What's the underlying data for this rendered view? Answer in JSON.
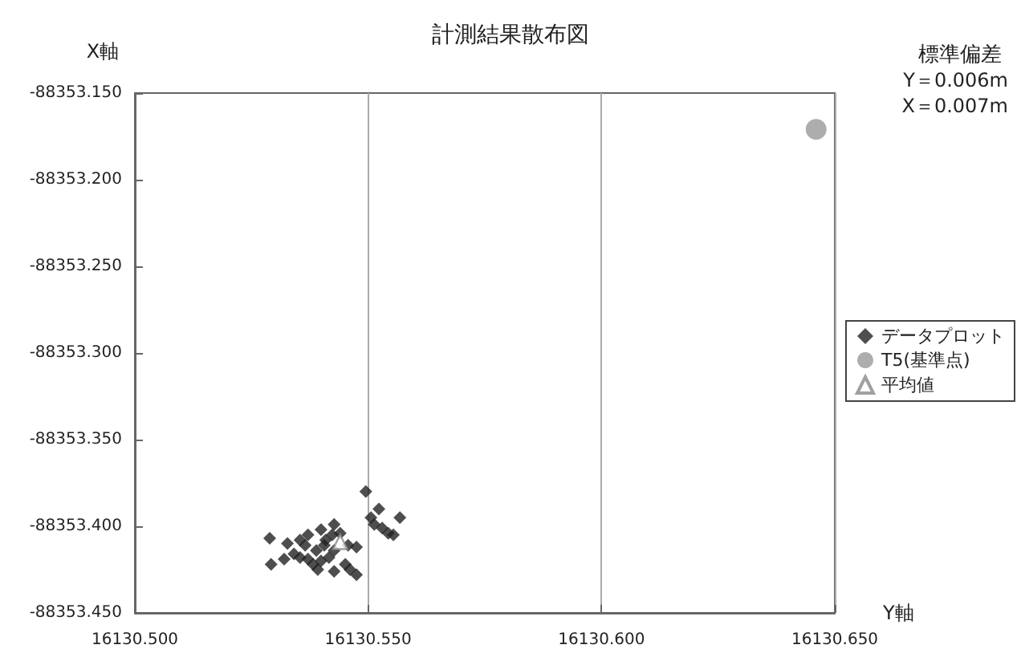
{
  "chart_data": {
    "type": "scatter",
    "title": "計測結果散布図",
    "xlabel": "Y軸",
    "ylabel": "X軸",
    "annotations": [
      "標準偏差",
      "Y＝0.006m",
      "X＝0.007m"
    ],
    "xlim": [
      16130.5,
      16130.65
    ],
    "xticks": [
      {
        "value": 16130.5,
        "label": "16130.500"
      },
      {
        "value": 16130.55,
        "label": "16130.550"
      },
      {
        "value": 16130.6,
        "label": "16130.600"
      },
      {
        "value": 16130.65,
        "label": "16130.650"
      }
    ],
    "ylim": [
      -88353.45,
      -88353.15
    ],
    "yticks": [
      {
        "value": -88353.45,
        "label": "-88353.450"
      },
      {
        "value": -88353.4,
        "label": "-88353.400"
      },
      {
        "value": -88353.35,
        "label": "-88353.350"
      },
      {
        "value": -88353.3,
        "label": "-88353.300"
      },
      {
        "value": -88353.25,
        "label": "-88353.250"
      },
      {
        "value": -88353.2,
        "label": "-88353.200"
      },
      {
        "value": -88353.15,
        "label": "-88353.150"
      }
    ],
    "grid": "x",
    "legend": "right",
    "series": [
      {
        "name": "データプロット",
        "color": "#222222",
        "marker": "diamond",
        "x": [
          16130.5495,
          16130.5523,
          16130.5568,
          16130.5506,
          16130.5513,
          16130.553,
          16130.5554,
          16130.5543,
          16130.5289,
          16130.5327,
          16130.5292,
          16130.532,
          16130.5354,
          16130.5399,
          16130.5427,
          16130.544,
          16130.5409,
          16130.5389,
          16130.5365,
          16130.5416,
          16130.5392,
          16130.5382,
          16130.5451,
          16130.5475,
          16130.5461,
          16130.5475,
          16130.5457,
          16130.5427,
          16130.5371,
          16130.5341,
          16130.5423,
          16130.5406,
          16130.5399,
          16130.5427,
          16130.5371,
          16130.5354
        ],
        "values": [
          -88353.38,
          -88353.39,
          -88353.395,
          -88353.395,
          -88353.399,
          -88353.401,
          -88353.405,
          -88353.404,
          -88353.407,
          -88353.41,
          -88353.422,
          -88353.419,
          -88353.418,
          -88353.402,
          -88353.399,
          -88353.404,
          -88353.408,
          -88353.414,
          -88353.411,
          -88353.418,
          -88353.425,
          -88353.422,
          -88353.422,
          -88353.428,
          -88353.425,
          -88353.412,
          -88353.411,
          -88353.414,
          -88353.419,
          -88353.416,
          -88353.405,
          -88353.411,
          -88353.42,
          -88353.426,
          -88353.405,
          -88353.408
        ]
      },
      {
        "name": "T5(基準点)",
        "color": "#999999",
        "marker": "circle",
        "x": [
          16130.646
        ],
        "values": [
          -88353.171
        ]
      },
      {
        "name": "平均値",
        "color": "#888888",
        "marker": "triangle",
        "x": [
          16130.544
        ],
        "values": [
          -88353.409
        ]
      }
    ]
  }
}
